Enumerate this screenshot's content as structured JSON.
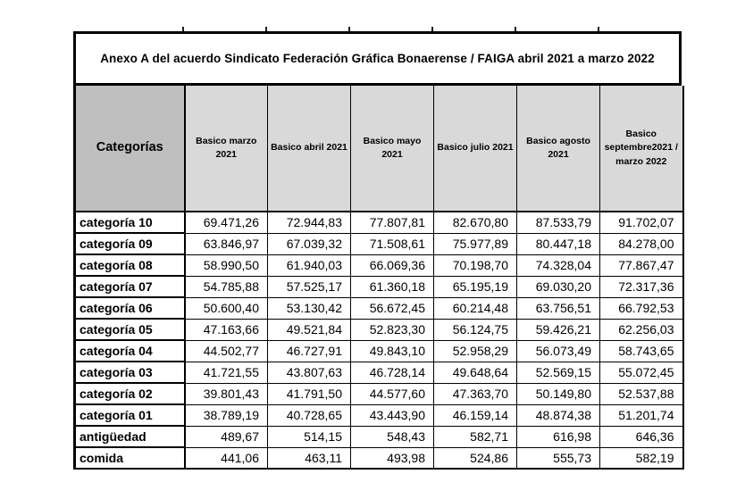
{
  "title": "Anexo A del acuerdo Sindicato Federación Gráfica Bonaerense / FAIGA  abril 2021 a marzo 2022",
  "table": {
    "header": {
      "category_label": "Categorías",
      "columns": [
        "Basico marzo 2021",
        "Basico abril  2021",
        "Basico mayo 2021",
        "Basico julio 2021",
        "Basico agosto 2021",
        "Basico septembre2021 / marzo 2022"
      ]
    },
    "rows": [
      {
        "label": "categoría 10",
        "values": [
          "69.471,26",
          "72.944,83",
          "77.807,81",
          "82.670,80",
          "87.533,79",
          "91.702,07"
        ]
      },
      {
        "label": "categoría 09",
        "values": [
          "63.846,97",
          "67.039,32",
          "71.508,61",
          "75.977,89",
          "80.447,18",
          "84.278,00"
        ]
      },
      {
        "label": "categoría 08",
        "values": [
          "58.990,50",
          "61.940,03",
          "66.069,36",
          "70.198,70",
          "74.328,04",
          "77.867,47"
        ]
      },
      {
        "label": "categoría 07",
        "values": [
          "54.785,88",
          "57.525,17",
          "61.360,18",
          "65.195,19",
          "69.030,20",
          "72.317,36"
        ]
      },
      {
        "label": "categoría 06",
        "values": [
          "50.600,40",
          "53.130,42",
          "56.672,45",
          "60.214,48",
          "63.756,51",
          "66.792,53"
        ]
      },
      {
        "label": "categoría 05",
        "values": [
          "47.163,66",
          "49.521,84",
          "52.823,30",
          "56.124,75",
          "59.426,21",
          "62.256,03"
        ]
      },
      {
        "label": "categoría 04",
        "values": [
          "44.502,77",
          "46.727,91",
          "49.843,10",
          "52.958,29",
          "56.073,49",
          "58.743,65"
        ]
      },
      {
        "label": "categoría 03",
        "values": [
          "41.721,55",
          "43.807,63",
          "46.728,14",
          "49.648,64",
          "52.569,15",
          "55.072,45"
        ]
      },
      {
        "label": "categoría 02",
        "values": [
          "39.801,43",
          "41.791,50",
          "44.577,60",
          "47.363,70",
          "50.149,80",
          "52.537,88"
        ]
      },
      {
        "label": "categoría 01",
        "values": [
          "38.789,19",
          "40.728,65",
          "43.443,90",
          "46.159,14",
          "48.874,38",
          "51.201,74"
        ]
      },
      {
        "label": "antigüedad",
        "values": [
          "489,67",
          "514,15",
          "548,43",
          "582,71",
          "616,98",
          "646,36"
        ]
      },
      {
        "label": "comida",
        "values": [
          "441,06",
          "463,11",
          "493,98",
          "524,86",
          "555,73",
          "582,19"
        ]
      }
    ]
  },
  "colors": {
    "border": "#000000",
    "title_bg": "#ffffff",
    "header_bg": "#d9d9d9",
    "category_header_bg": "#bfbfbf",
    "row_bg": "#ffffff",
    "text": "#000000",
    "page_bg": "#ffffff"
  }
}
